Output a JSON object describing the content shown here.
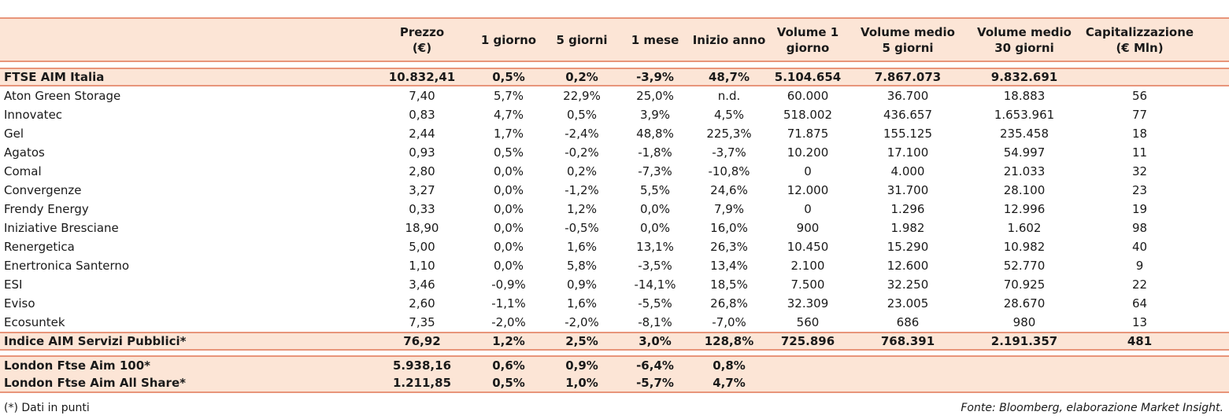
{
  "header": {
    "col0": "",
    "prezzo_line1": "Prezzo",
    "prezzo_line2": "(€)",
    "g1": "1 giorno",
    "g5": "5 giorni",
    "m1": "1 mese",
    "ia": "Inizio anno",
    "vol1_line1": "Volume 1",
    "vol1_line2": "giorno",
    "vm5_line1": "Volume medio",
    "vm5_line2": "5 giorni",
    "vm30_line1": "Volume medio",
    "vm30_line2": "30 giorni",
    "cap_line1": "Capitalizzazione",
    "cap_line2": "(€ Mln)"
  },
  "index_row": [
    "FTSE AIM Italia",
    "10.832,41",
    "0,5%",
    "0,2%",
    "-3,9%",
    "48,7%",
    "5.104.654",
    "7.867.073",
    "9.832.691",
    ""
  ],
  "rows": [
    [
      "Aton Green Storage",
      "7,40",
      "5,7%",
      "22,9%",
      "25,0%",
      "n.d.",
      "60.000",
      "36.700",
      "18.883",
      "56"
    ],
    [
      "Innovatec",
      "0,83",
      "4,7%",
      "0,5%",
      "3,9%",
      "4,5%",
      "518.002",
      "436.657",
      "1.653.961",
      "77"
    ],
    [
      "Gel",
      "2,44",
      "1,7%",
      "-2,4%",
      "48,8%",
      "225,3%",
      "71.875",
      "155.125",
      "235.458",
      "18"
    ],
    [
      "Agatos",
      "0,93",
      "0,5%",
      "-0,2%",
      "-1,8%",
      "-3,7%",
      "10.200",
      "17.100",
      "54.997",
      "11"
    ],
    [
      "Comal",
      "2,80",
      "0,0%",
      "0,2%",
      "-7,3%",
      "-10,8%",
      "0",
      "4.000",
      "21.033",
      "32"
    ],
    [
      "Convergenze",
      "3,27",
      "0,0%",
      "-1,2%",
      "5,5%",
      "24,6%",
      "12.000",
      "31.700",
      "28.100",
      "23"
    ],
    [
      "Frendy Energy",
      "0,33",
      "0,0%",
      "1,2%",
      "0,0%",
      "7,9%",
      "0",
      "1.296",
      "12.996",
      "19"
    ],
    [
      "Iniziative Bresciane",
      "18,90",
      "0,0%",
      "-0,5%",
      "0,0%",
      "16,0%",
      "900",
      "1.982",
      "1.602",
      "98"
    ],
    [
      "Renergetica",
      "5,00",
      "0,0%",
      "1,6%",
      "13,1%",
      "26,3%",
      "10.450",
      "15.290",
      "10.982",
      "40"
    ],
    [
      "Enertronica Santerno",
      "1,10",
      "0,0%",
      "5,8%",
      "-3,5%",
      "13,4%",
      "2.100",
      "12.600",
      "52.770",
      "9"
    ],
    [
      "ESI",
      "3,46",
      "-0,9%",
      "0,9%",
      "-14,1%",
      "18,5%",
      "7.500",
      "32.250",
      "70.925",
      "22"
    ],
    [
      "Eviso",
      "2,60",
      "-1,1%",
      "1,6%",
      "-5,5%",
      "26,8%",
      "32.309",
      "23.005",
      "28.670",
      "64"
    ],
    [
      "Ecosuntek",
      "7,35",
      "-2,0%",
      "-2,0%",
      "-8,1%",
      "-7,0%",
      "560",
      "686",
      "980",
      "13"
    ]
  ],
  "sector_row": [
    "Indice AIM Servizi Pubblici*",
    "76,92",
    "1,2%",
    "2,5%",
    "3,0%",
    "128,8%",
    "725.896",
    "768.391",
    "2.191.357",
    "481"
  ],
  "london_rows": [
    [
      "London Ftse Aim 100*",
      "5.938,16",
      "0,6%",
      "0,9%",
      "-6,4%",
      "0,8%",
      "",
      "",
      "",
      ""
    ],
    [
      "London Ftse Aim All Share*",
      "1.211,85",
      "0,5%",
      "1,0%",
      "-5,7%",
      "4,7%",
      "",
      "",
      "",
      ""
    ]
  ],
  "footer": {
    "note": "(*) Dati in punti",
    "source": "Fonte: Bloomberg, elaborazione Market Insight."
  },
  "colors": {
    "accent_line": "#e8957a",
    "band_fill": "#fce5d6"
  }
}
